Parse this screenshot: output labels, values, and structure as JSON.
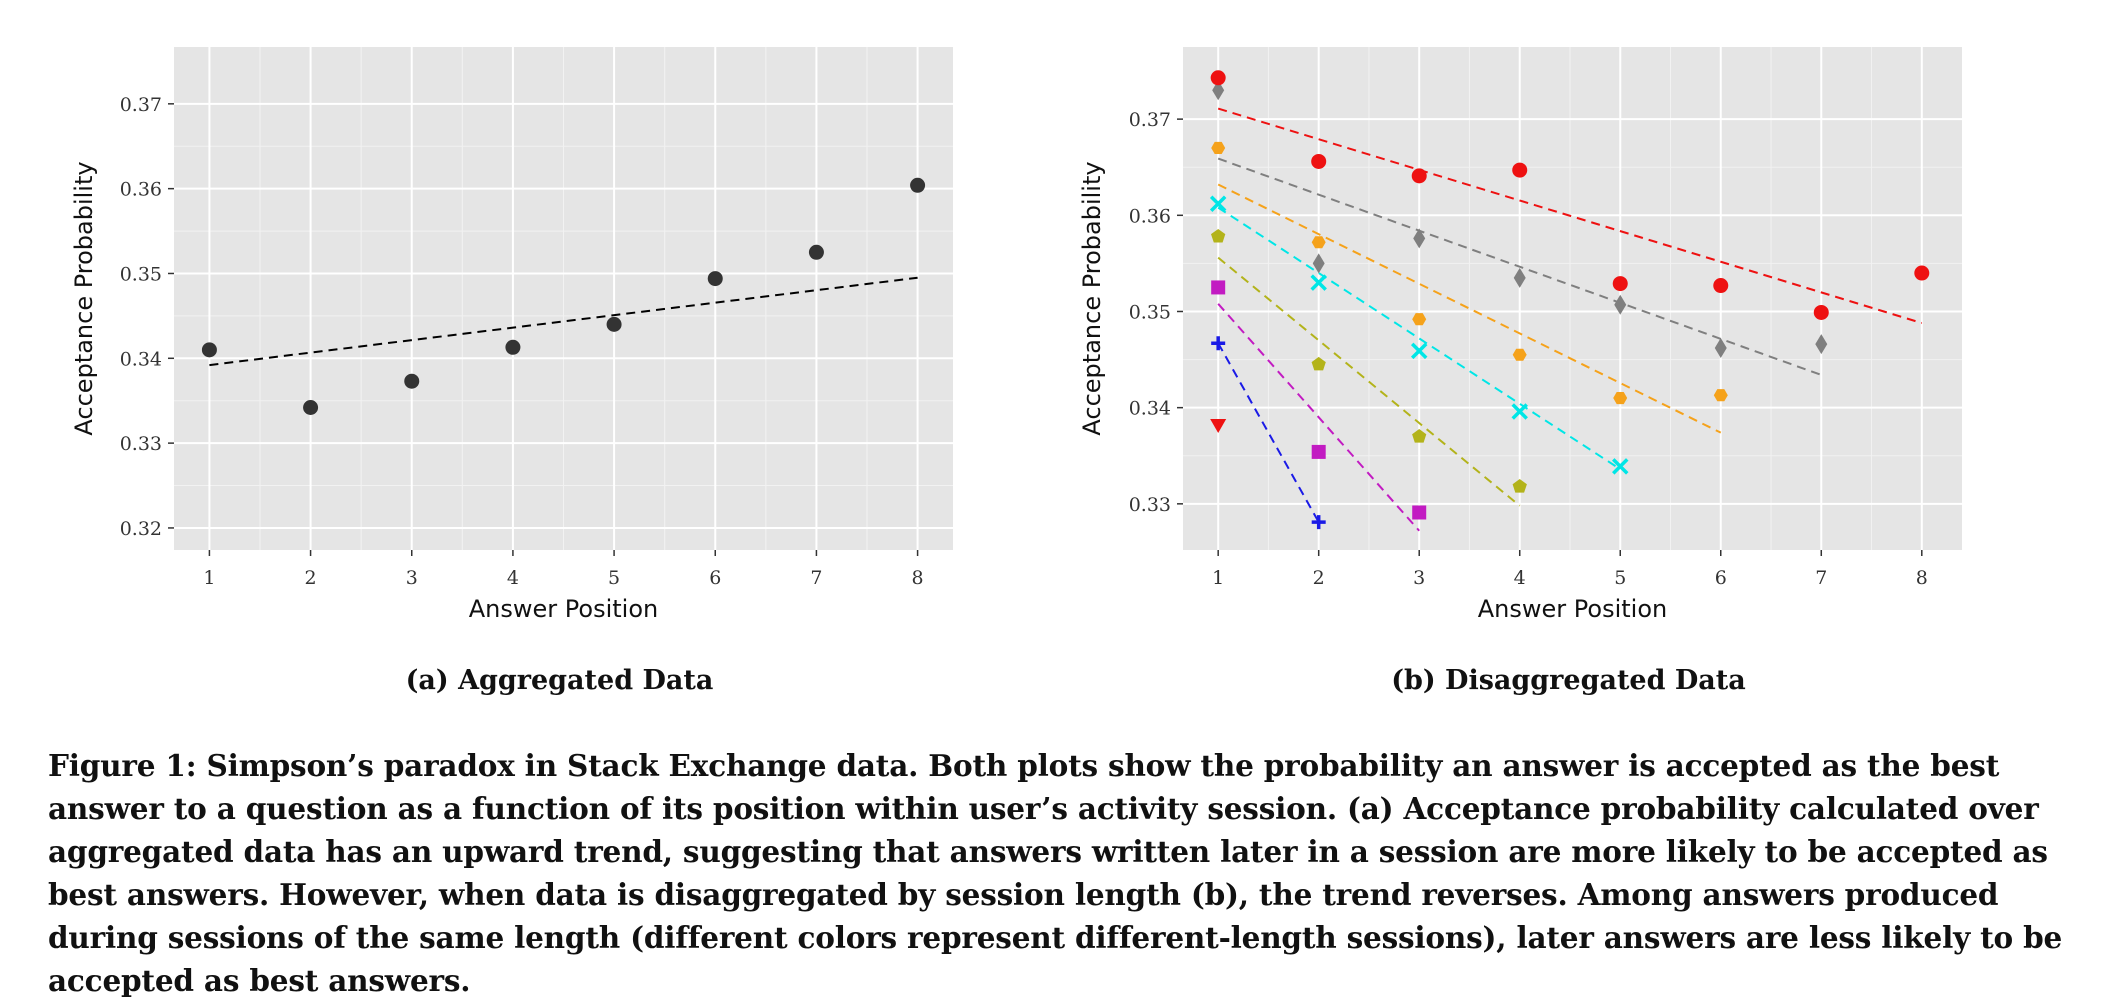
{
  "chart_data": [
    {
      "type": "scatter",
      "subcaption": "(a) Aggregated Data",
      "xlabel": "Answer Position",
      "ylabel": "Acceptance Probability",
      "xlim": [
        0.65,
        8.35
      ],
      "ylim": [
        0.3174,
        0.3767
      ],
      "xticks": [
        1,
        2,
        3,
        4,
        5,
        6,
        7,
        8
      ],
      "xtick_labels": [
        "1",
        "2",
        "3",
        "4",
        "5",
        "6",
        "7",
        "8"
      ],
      "yticks": [
        0.32,
        0.33,
        0.34,
        0.35,
        0.36,
        0.37
      ],
      "ytick_labels": [
        "0.32",
        "0.33",
        "0.34",
        "0.35",
        "0.36",
        "0.37"
      ],
      "grid": true,
      "series": [
        {
          "marker": "circle",
          "color": "#333333",
          "points": [
            [
              1,
              0.341
            ],
            [
              2,
              0.3342
            ],
            [
              3,
              0.3373
            ],
            [
              4,
              0.3413
            ],
            [
              5,
              0.344
            ],
            [
              6,
              0.3494
            ],
            [
              7,
              0.3525
            ],
            [
              8,
              0.3604
            ]
          ],
          "fit": [
            [
              1,
              0.3392
            ],
            [
              8,
              0.3495
            ]
          ]
        }
      ]
    },
    {
      "type": "scatter",
      "subcaption": "(b) Disaggregated Data",
      "xlabel": "Answer Position",
      "ylabel": "Acceptance Probability",
      "xlim": [
        0.65,
        8.4
      ],
      "ylim": [
        0.3252,
        0.3775
      ],
      "xticks": [
        1,
        2,
        3,
        4,
        5,
        6,
        7,
        8
      ],
      "xtick_labels": [
        "1",
        "2",
        "3",
        "4",
        "5",
        "6",
        "7",
        "8"
      ],
      "yticks": [
        0.33,
        0.34,
        0.35,
        0.36,
        0.37
      ],
      "ytick_labels": [
        "0.33",
        "0.34",
        "0.35",
        "0.36",
        "0.37"
      ],
      "grid": true,
      "series": [
        {
          "marker": "triangle-down",
          "color": "#ee1111",
          "points": [
            [
              1,
              0.3382
            ]
          ],
          "fit": null
        },
        {
          "marker": "plus",
          "color": "#1a1ae6",
          "points": [
            [
              1,
              0.3467
            ],
            [
              2,
              0.3281
            ]
          ],
          "fit": [
            [
              1,
              0.3467
            ],
            [
              2,
              0.3281
            ]
          ]
        },
        {
          "marker": "square",
          "color": "#c21bc2",
          "points": [
            [
              1,
              0.3525
            ],
            [
              2,
              0.3354
            ],
            [
              3,
              0.3291
            ]
          ],
          "fit": [
            [
              1,
              0.3508
            ],
            [
              3,
              0.3272
            ]
          ]
        },
        {
          "marker": "pentagon",
          "color": "#b3b31a",
          "points": [
            [
              1,
              0.3578
            ],
            [
              2,
              0.3445
            ],
            [
              3,
              0.337
            ],
            [
              4,
              0.3318
            ]
          ],
          "fit": [
            [
              1,
              0.3556
            ],
            [
              4,
              0.3298
            ]
          ]
        },
        {
          "marker": "x",
          "color": "#00e6e6",
          "points": [
            [
              1,
              0.3612
            ],
            [
              2,
              0.353
            ],
            [
              3,
              0.3459
            ],
            [
              4,
              0.3396
            ],
            [
              5,
              0.3339
            ]
          ],
          "fit": [
            [
              1,
              0.3608
            ],
            [
              5,
              0.3336
            ]
          ]
        },
        {
          "marker": "hexagon",
          "color": "#f5a21b",
          "points": [
            [
              1,
              0.367
            ],
            [
              2,
              0.3572
            ],
            [
              3,
              0.3492
            ],
            [
              4,
              0.3455
            ],
            [
              5,
              0.341
            ],
            [
              6,
              0.3413
            ]
          ],
          "fit": [
            [
              1,
              0.3632
            ],
            [
              6,
              0.3374
            ]
          ]
        },
        {
          "marker": "diamond",
          "color": "#7f7f7f",
          "points": [
            [
              1,
              0.373
            ],
            [
              2,
              0.355
            ],
            [
              3,
              0.3576
            ],
            [
              4,
              0.3535
            ],
            [
              5,
              0.3507
            ],
            [
              6,
              0.3462
            ],
            [
              7,
              0.3466
            ]
          ],
          "fit": [
            [
              1,
              0.3659
            ],
            [
              7,
              0.3434
            ]
          ]
        },
        {
          "marker": "circle",
          "color": "#ee1111",
          "points": [
            [
              1,
              0.3743
            ],
            [
              2,
              0.3656
            ],
            [
              3,
              0.3641
            ],
            [
              4,
              0.3647
            ],
            [
              5,
              0.3529
            ],
            [
              6,
              0.3527
            ],
            [
              7,
              0.3499
            ],
            [
              8,
              0.354
            ]
          ],
          "fit": [
            [
              1,
              0.3711
            ],
            [
              8,
              0.3488
            ]
          ]
        }
      ]
    }
  ],
  "caption": "Figure 1: Simpson’s paradox in Stack Exchange data. Both plots show the probability an answer is accepted as the best answer to a question as a function of its position within user’s activity session. (a) Acceptance probability calculated over aggregated data has an upward trend, suggesting that answers written later in a session are more likely to be accepted as best answers. However, when data is disaggregated by session length (b), the trend reverses. Among answers produced during sessions of the same length (different colors represent different-length sessions), later answers are less likely to be accepted as best answers."
}
